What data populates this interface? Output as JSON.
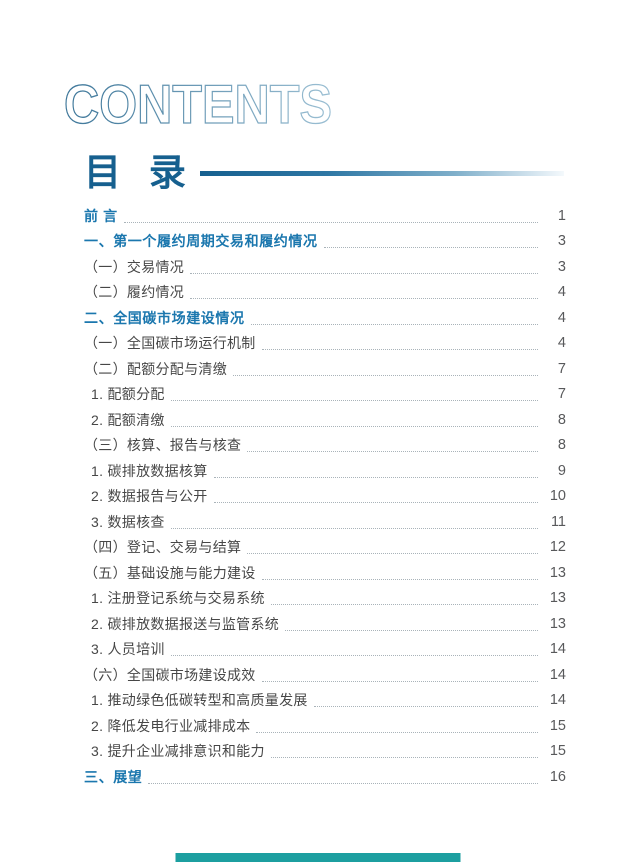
{
  "page": {
    "contents_title": "CONTENTS",
    "toc_title": "目 录"
  },
  "colors": {
    "title_navy": "#16608f",
    "heading_blue": "#1b77ae",
    "entry_gray": "#474747",
    "page_number_gray": "#58595b",
    "leader_dot_gray": "#a9b3b9",
    "contents_outline_start": "#3d7699",
    "contents_outline_end": "#9cc0d4",
    "footer_teal": "#1c9fa0"
  },
  "toc": {
    "entries": [
      {
        "label": "前 言",
        "page": "1",
        "level": "section"
      },
      {
        "label": "一、第一个履约周期交易和履约情况",
        "page": "3",
        "level": "section"
      },
      {
        "label": "（一）交易情况",
        "page": "3",
        "level": "paren"
      },
      {
        "label": "（二）履约情况",
        "page": "4",
        "level": "paren"
      },
      {
        "label": "二、全国碳市场建设情况",
        "page": "4",
        "level": "section"
      },
      {
        "label": "（一）全国碳市场运行机制",
        "page": "4",
        "level": "paren"
      },
      {
        "label": "（二）配额分配与清缴",
        "page": "7",
        "level": "paren"
      },
      {
        "label": "1. 配额分配",
        "page": "7",
        "level": "num"
      },
      {
        "label": "2. 配额清缴",
        "page": "8",
        "level": "num"
      },
      {
        "label": "（三）核算、报告与核查",
        "page": "8",
        "level": "paren"
      },
      {
        "label": "1. 碳排放数据核算",
        "page": "9",
        "level": "num"
      },
      {
        "label": "2. 数据报告与公开",
        "page": "10",
        "level": "num"
      },
      {
        "label": "3. 数据核查",
        "page": "11",
        "level": "num"
      },
      {
        "label": "（四）登记、交易与结算",
        "page": "12",
        "level": "paren"
      },
      {
        "label": "（五）基础设施与能力建设",
        "page": "13",
        "level": "paren"
      },
      {
        "label": "1. 注册登记系统与交易系统",
        "page": "13",
        "level": "num"
      },
      {
        "label": "2. 碳排放数据报送与监管系统",
        "page": "13",
        "level": "num"
      },
      {
        "label": "3. 人员培训",
        "page": "14",
        "level": "num"
      },
      {
        "label": "（六）全国碳市场建设成效",
        "page": "14",
        "level": "paren"
      },
      {
        "label": "1. 推动绿色低碳转型和高质量发展",
        "page": "14",
        "level": "num"
      },
      {
        "label": "2. 降低发电行业减排成本",
        "page": "15",
        "level": "num"
      },
      {
        "label": "3. 提升企业减排意识和能力",
        "page": "15",
        "level": "num"
      },
      {
        "label": "三、展望",
        "page": "16",
        "level": "section"
      }
    ]
  }
}
